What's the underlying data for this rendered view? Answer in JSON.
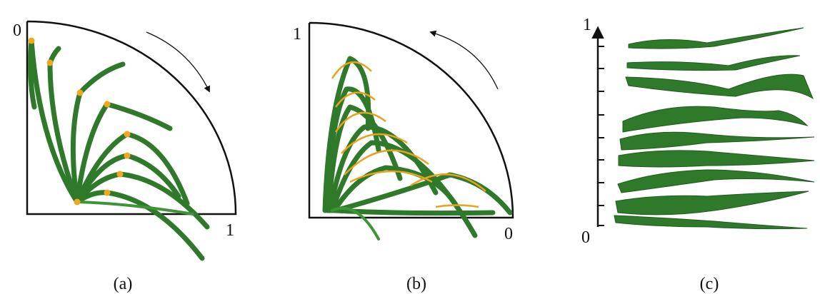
{
  "panels": [
    {
      "start_label": "0",
      "end_label": "1",
      "caption": "(a)"
    },
    {
      "start_label": "1",
      "end_label": "0",
      "caption": "(b)"
    },
    {
      "start_label": "1",
      "end_label": "0",
      "caption": "(c)"
    }
  ]
}
